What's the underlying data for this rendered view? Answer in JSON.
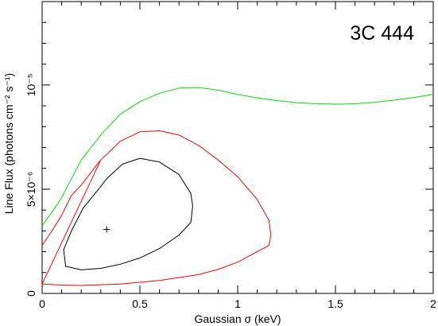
{
  "chart_data": {
    "type": "line",
    "title": "3C 444",
    "xlabel": "Gaussian σ (keV)",
    "ylabel": "Line Flux (photons cm⁻² s⁻¹)",
    "xlim": [
      0,
      2
    ],
    "ylim": [
      0,
      1.4e-05
    ],
    "x_ticks": [
      {
        "value": 0,
        "label": "0"
      },
      {
        "value": 0.5,
        "label": "0.5"
      },
      {
        "value": 1,
        "label": "1"
      },
      {
        "value": 1.5,
        "label": "1.5"
      },
      {
        "value": 2,
        "label": "2"
      }
    ],
    "y_ticks": [
      {
        "value": 0,
        "label": "0"
      },
      {
        "value": 5e-06,
        "label": "5×10⁻⁶"
      },
      {
        "value": 1e-05,
        "label": "10⁻⁵"
      }
    ],
    "grid": false,
    "best_fit": {
      "x": 0.33,
      "y": 3.07e-06,
      "marker": "+"
    },
    "series": [
      {
        "color": "#000000",
        "closed": true,
        "points": [
          [
            0.33,
            5.5e-06
          ],
          [
            0.41,
            6.2e-06
          ],
          [
            0.5,
            6.48e-06
          ],
          [
            0.6,
            6.3e-06
          ],
          [
            0.7,
            5.7e-06
          ],
          [
            0.76,
            4.8e-06
          ],
          [
            0.77,
            4.2e-06
          ],
          [
            0.76,
            3.4e-06
          ],
          [
            0.7,
            2.8e-06
          ],
          [
            0.6,
            2.15e-06
          ],
          [
            0.5,
            1.7e-06
          ],
          [
            0.4,
            1.4e-06
          ],
          [
            0.3,
            1.2e-06
          ],
          [
            0.2,
            1.13e-06
          ],
          [
            0.12,
            1.3e-06
          ],
          [
            0.11,
            2.1e-06
          ],
          [
            0.15,
            3e-06
          ],
          [
            0.21,
            4.1e-06
          ],
          [
            0.28,
            4.9e-06
          ]
        ]
      },
      {
        "color": "#ff0000",
        "closed": true,
        "points": [
          [
            0.3,
            6.4e-06
          ],
          [
            0.4,
            7.3e-06
          ],
          [
            0.5,
            7.75e-06
          ],
          [
            0.6,
            7.8e-06
          ],
          [
            0.7,
            7.6e-06
          ],
          [
            0.8,
            7.1e-06
          ],
          [
            0.9,
            6.4e-06
          ],
          [
            1.0,
            5.6e-06
          ],
          [
            1.1,
            4.5e-06
          ],
          [
            1.16,
            3.5e-06
          ],
          [
            1.17,
            2.8e-06
          ],
          [
            1.16,
            2.3e-06
          ],
          [
            1.1,
            2e-06
          ],
          [
            1.0,
            1.5e-06
          ],
          [
            0.9,
            1.15e-06
          ],
          [
            0.8,
            9e-07
          ],
          [
            0.6,
            6.2e-07
          ],
          [
            0.4,
            4.5e-07
          ],
          [
            0.2,
            3.8e-07
          ],
          [
            0.1,
            4e-07
          ],
          [
            0.0,
            4.5e-07
          ]
        ]
      },
      {
        "color": "#ff0000",
        "closed": false,
        "points": [
          [
            0.0,
            2.3e-06
          ],
          [
            0.05,
            3e-06
          ],
          [
            0.1,
            3.75e-06
          ],
          [
            0.15,
            4.7e-06
          ],
          [
            0.2,
            5.2e-06
          ],
          [
            0.3,
            6.4e-06
          ]
        ]
      },
      {
        "color": "#00dd00",
        "closed": false,
        "points": [
          [
            0.0,
            3.25e-06
          ],
          [
            0.05,
            3.9e-06
          ],
          [
            0.1,
            4.6e-06
          ],
          [
            0.15,
            5.5e-06
          ],
          [
            0.2,
            6.4e-06
          ],
          [
            0.25,
            7e-06
          ],
          [
            0.3,
            7.6e-06
          ],
          [
            0.4,
            8.6e-06
          ],
          [
            0.5,
            9.2e-06
          ],
          [
            0.6,
            9.6e-06
          ],
          [
            0.7,
            9.85e-06
          ],
          [
            0.8,
            9.88e-06
          ],
          [
            0.9,
            9.75e-06
          ],
          [
            1.0,
            9.55e-06
          ],
          [
            1.1,
            9.38e-06
          ],
          [
            1.2,
            9.25e-06
          ],
          [
            1.3,
            9.15e-06
          ],
          [
            1.4,
            9.1e-06
          ],
          [
            1.5,
            9.08e-06
          ],
          [
            1.6,
            9.1e-06
          ],
          [
            1.7,
            9.17e-06
          ],
          [
            1.8,
            9.27e-06
          ],
          [
            1.9,
            9.4e-06
          ],
          [
            2.0,
            9.55e-06
          ]
        ]
      }
    ]
  }
}
